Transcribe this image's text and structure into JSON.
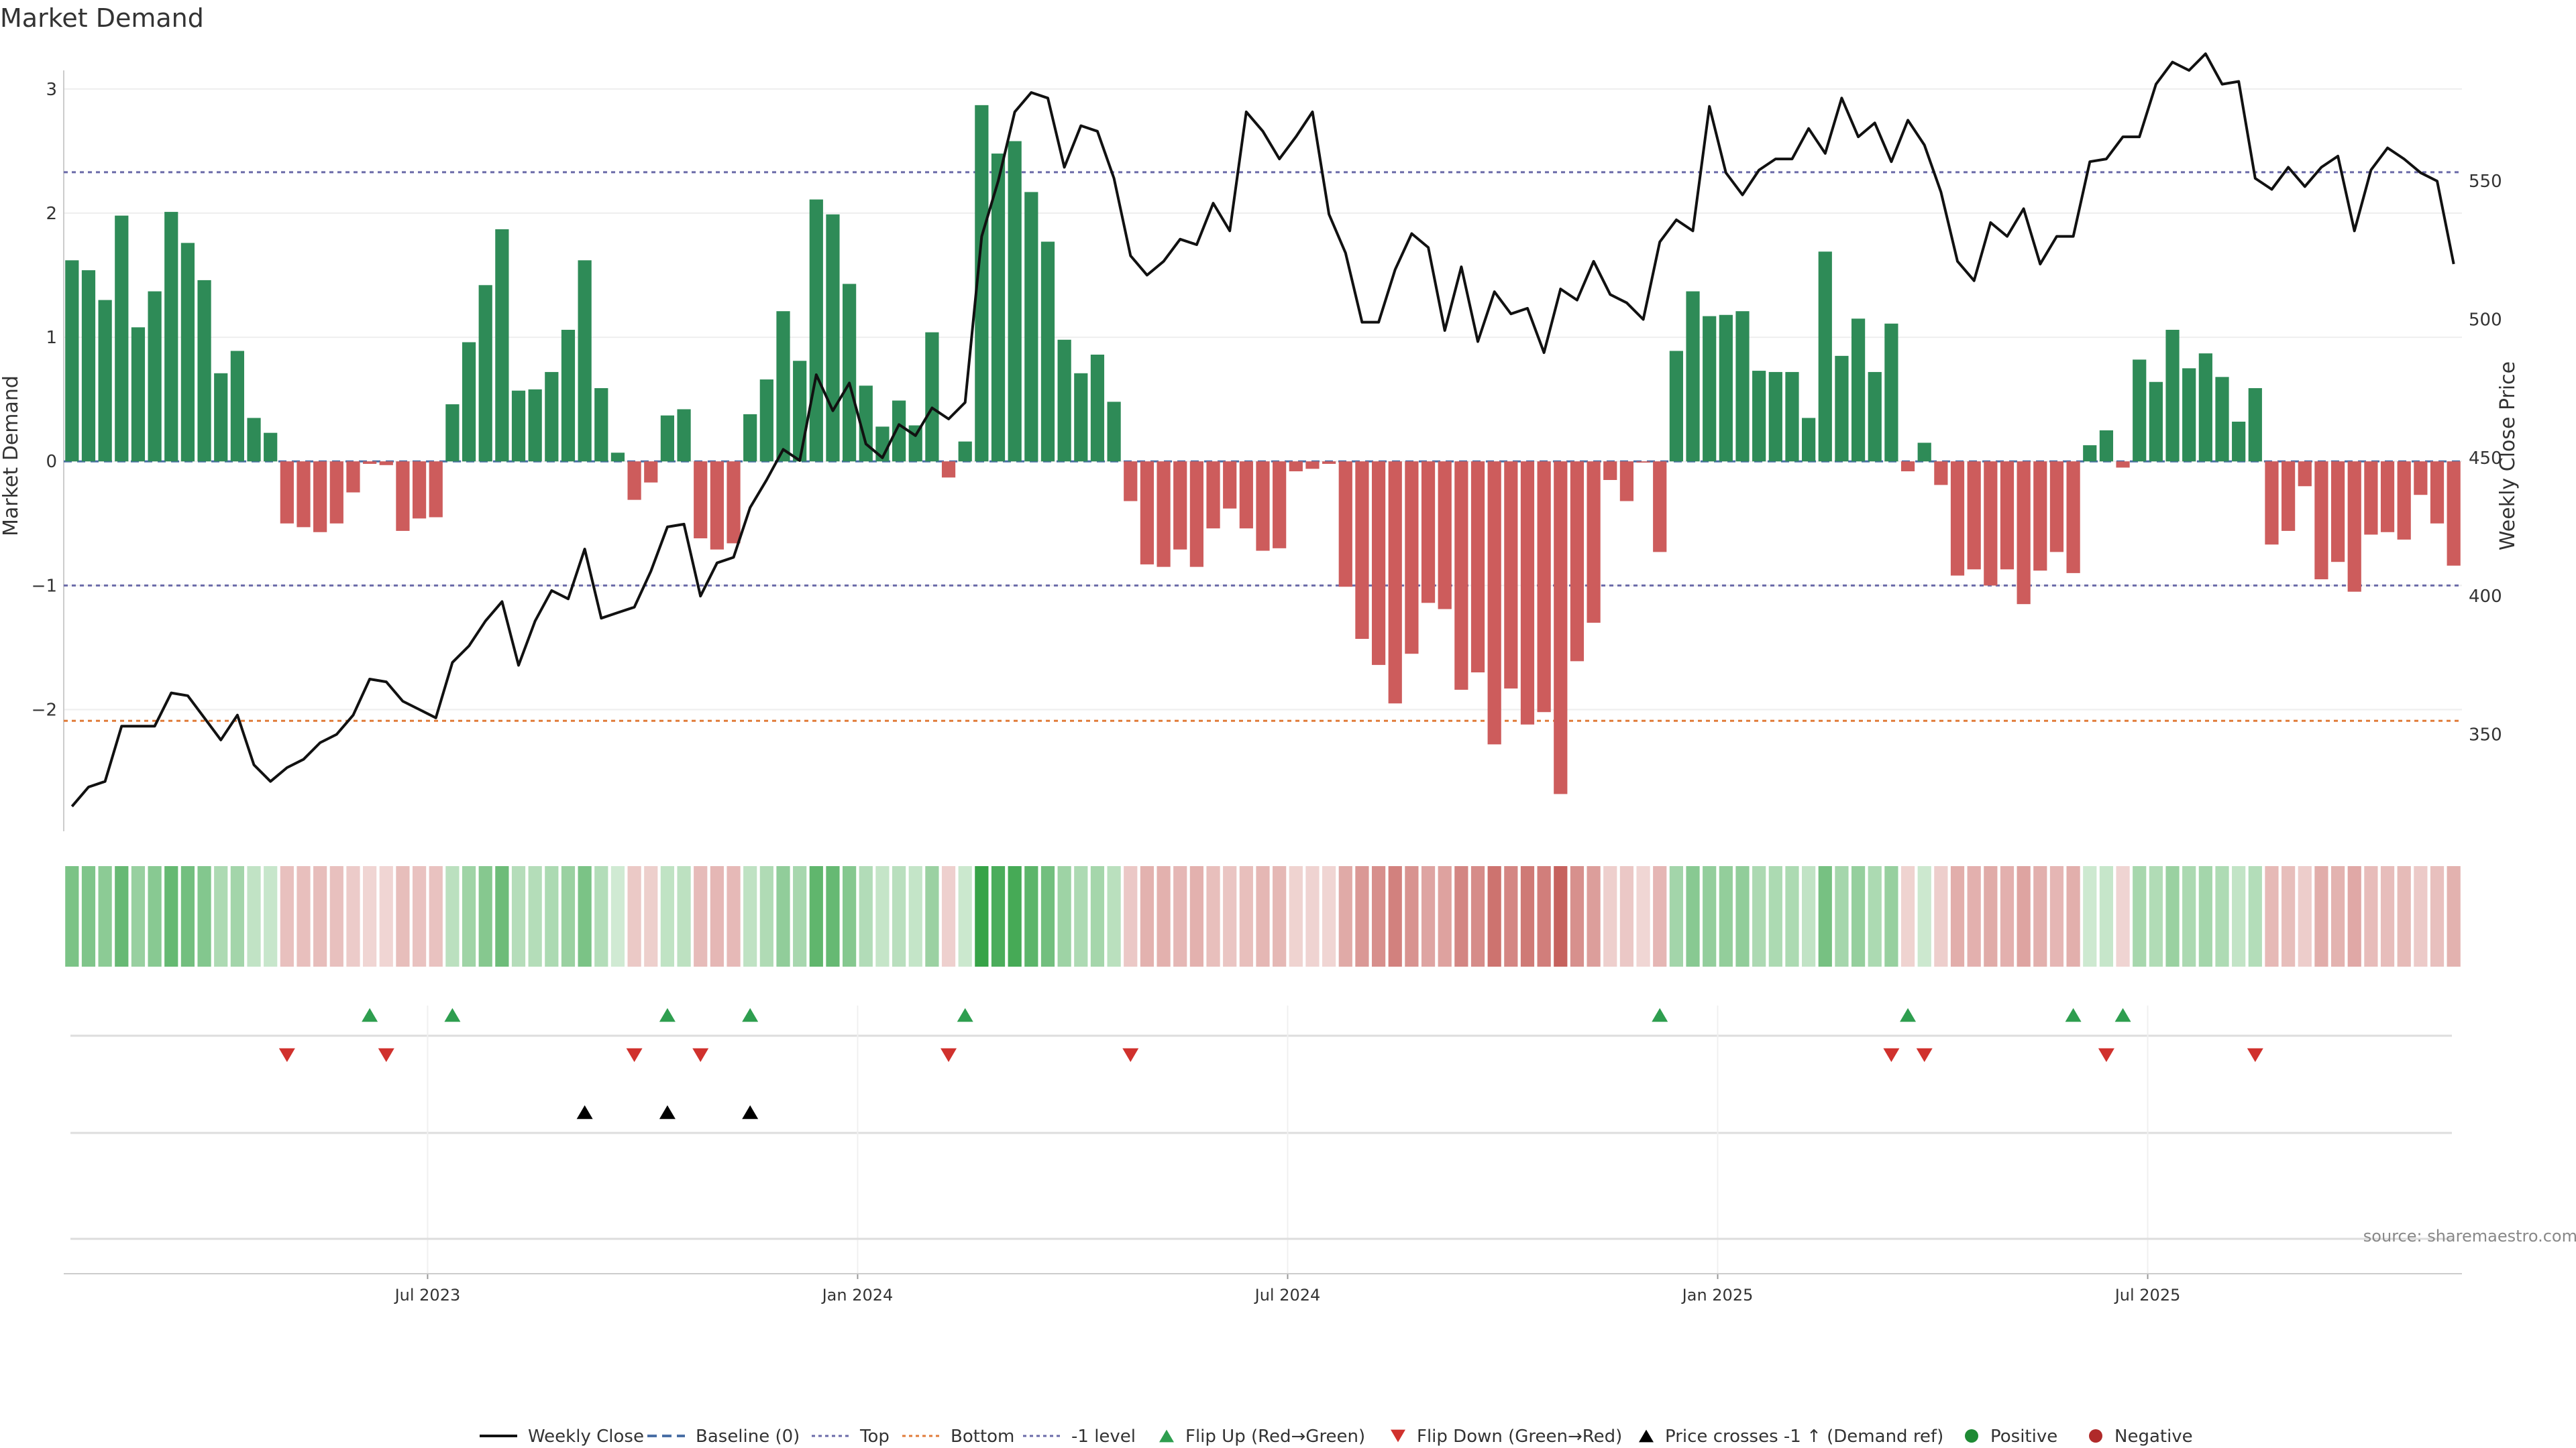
{
  "chart_data": {
    "type": "bar",
    "title": "Market Demand",
    "ylabel_left": "Market Demand",
    "ylabel_right": "Weekly Close Price",
    "source": "source: sharemaestro.com",
    "y_left_range": [
      -2.98,
      3.15
    ],
    "y_left_ticks": [
      3,
      2,
      1,
      0,
      -1,
      -2
    ],
    "y_left_tick_labels": [
      "3",
      "2",
      "1",
      "0",
      "−1",
      "−2"
    ],
    "y_right_range": [
      315,
      590
    ],
    "y_right_ticks": [
      550,
      500,
      450,
      400,
      350
    ],
    "y_right_tick_labels": [
      "550",
      "500",
      "450",
      "400",
      "350"
    ],
    "reference_lines": {
      "top": 2.33,
      "bottom": -2.09,
      "minus_one": -1.0,
      "baseline": 0
    },
    "x_tick_positions": [
      22,
      48,
      74,
      100,
      126
    ],
    "x_tick_labels": [
      "Jul 2023",
      "Jan 2024",
      "Jul 2024",
      "Jan 2025",
      "Jul 2025"
    ],
    "series": [
      {
        "name": "Market Demand (weekly)",
        "values": [
          1.62,
          1.54,
          1.3,
          1.98,
          1.08,
          1.37,
          2.01,
          1.76,
          1.46,
          0.71,
          0.89,
          0.35,
          0.23,
          -0.5,
          -0.53,
          -0.57,
          -0.5,
          -0.25,
          -0.02,
          -0.03,
          -0.56,
          -0.46,
          -0.45,
          0.46,
          0.96,
          1.42,
          1.87,
          0.57,
          0.58,
          0.72,
          1.06,
          1.62,
          0.59,
          0.07,
          -0.31,
          -0.17,
          0.37,
          0.42,
          -0.62,
          -0.71,
          -0.66,
          0.38,
          0.66,
          1.21,
          0.81,
          2.11,
          1.99,
          1.43,
          0.61,
          0.28,
          0.49,
          0.29,
          1.04,
          -0.13,
          0.16,
          2.87,
          2.48,
          2.58,
          2.17,
          1.77,
          0.98,
          0.71,
          0.86,
          0.48,
          -0.32,
          -0.83,
          -0.85,
          -0.71,
          -0.85,
          -0.54,
          -0.38,
          -0.54,
          -0.72,
          -0.7,
          -0.08,
          -0.06,
          -0.02,
          -1.01,
          -1.43,
          -1.64,
          -1.95,
          -1.55,
          -1.14,
          -1.19,
          -1.84,
          -1.7,
          -2.28,
          -1.83,
          -2.12,
          -2.02,
          -2.68,
          -1.61,
          -1.3,
          -0.15,
          -0.32,
          -0.01,
          -0.73,
          0.89,
          1.37,
          1.17,
          1.18,
          1.21,
          0.73,
          0.72,
          0.72,
          0.35,
          1.69,
          0.85,
          1.15,
          0.72,
          1.11,
          -0.08,
          0.15,
          -0.19,
          -0.92,
          -0.87,
          -1.0,
          -0.87,
          -1.15,
          -0.88,
          -0.73,
          -0.9,
          0.13,
          0.25,
          -0.05,
          0.82,
          0.64,
          1.06,
          0.75,
          0.87,
          0.68,
          0.32,
          0.59,
          -0.67,
          -0.56,
          -0.2,
          -0.95,
          -0.81,
          -1.05,
          -0.59,
          -0.57,
          -0.63,
          -0.27,
          -0.5,
          -0.84
        ]
      },
      {
        "name": "Weekly Close",
        "values": [
          324,
          331,
          333,
          353,
          353,
          353,
          365,
          364,
          356,
          348,
          357,
          339,
          333,
          338,
          341,
          347,
          350,
          357,
          370,
          369,
          362,
          359,
          356,
          376,
          382,
          391,
          398,
          375,
          391,
          402,
          399,
          417,
          392,
          394,
          396,
          409,
          425,
          426,
          400,
          412,
          414,
          432,
          442,
          453,
          449,
          480,
          467,
          477,
          455,
          450,
          462,
          458,
          468,
          464,
          470,
          530,
          550,
          575,
          582,
          580,
          555,
          570,
          568,
          551,
          523,
          516,
          521,
          529,
          527,
          542,
          532,
          575,
          568,
          558,
          566,
          575,
          538,
          524,
          499,
          499,
          518,
          531,
          526,
          496,
          519,
          492,
          510,
          502,
          504,
          488,
          511,
          507,
          521,
          509,
          506,
          500,
          528,
          536,
          532,
          577,
          553,
          545,
          554,
          558,
          558,
          569,
          560,
          580,
          566,
          571,
          557,
          572,
          563,
          546,
          521,
          514,
          535,
          530,
          540,
          520,
          530,
          530,
          557,
          558,
          566,
          566,
          585,
          593,
          590,
          596,
          585,
          586,
          551,
          547,
          555,
          548,
          555,
          559,
          532,
          554,
          562,
          558,
          553,
          550,
          520
        ]
      }
    ],
    "flip_up_indices": [
      18,
      23,
      36,
      41,
      54,
      96,
      111,
      121,
      124
    ],
    "flip_down_indices": [
      13,
      19,
      34,
      38,
      53,
      64,
      110,
      112,
      123,
      132
    ],
    "price_cross_indices": [
      31,
      36,
      41
    ],
    "legend": [
      {
        "label": "Weekly Close",
        "marker": "line-solid",
        "color": "#111111"
      },
      {
        "label": "Baseline (0)",
        "marker": "line-dashed",
        "color": "#4a6fa5"
      },
      {
        "label": "Top",
        "marker": "line-dotted",
        "color": "#6a6aa8"
      },
      {
        "label": "Bottom",
        "marker": "line-dotted",
        "color": "#e07b39"
      },
      {
        "label": "-1 level",
        "marker": "line-dotted",
        "color": "#6a6aa8"
      },
      {
        "label": "Flip Up (Red→Green)",
        "marker": "triangle-up",
        "color": "#2e9e4f"
      },
      {
        "label": "Flip Down (Green→Red)",
        "marker": "triangle-down",
        "color": "#d0312d"
      },
      {
        "label": "Price crosses -1 ↑ (Demand ref)",
        "marker": "triangle-up",
        "color": "#000000"
      },
      {
        "label": "Positive",
        "marker": "circle",
        "color": "#1e8a34"
      },
      {
        "label": "Negative",
        "marker": "circle",
        "color": "#b02a2a"
      }
    ]
  },
  "colors": {
    "positive_bar": "#2e8b57",
    "negative_bar": "#cd5c5c",
    "price_line": "#111111",
    "flip_up": "#2e9e4f",
    "flip_down": "#d0312d",
    "top_line": "#6a6aa8",
    "bottom_line": "#e07b39"
  }
}
